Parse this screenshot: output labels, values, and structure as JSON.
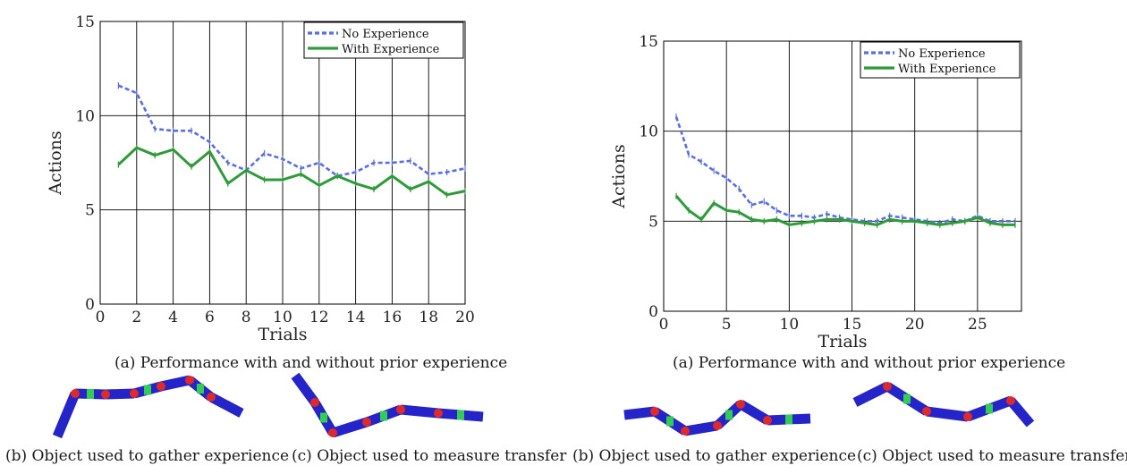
{
  "colors": {
    "no_experience": "#5a6ee0",
    "with_experience": "#2e9a3a",
    "segment": "#2424c8",
    "joint": "#e02a2a",
    "link": "#33cc55",
    "grid": "#000000"
  },
  "chart_data": [
    {
      "type": "line",
      "xlabel": "Trials",
      "ylabel": "Actions",
      "xlim": [
        0,
        20
      ],
      "ylim": [
        0,
        15
      ],
      "xticks": [
        "0",
        "2",
        "4",
        "6",
        "8",
        "10",
        "12",
        "14",
        "16",
        "18",
        "20"
      ],
      "yticks": [
        "0",
        "5",
        "10",
        "15"
      ],
      "grid": true,
      "legend": "top-right",
      "x": [
        1,
        2,
        3,
        4,
        5,
        6,
        7,
        8,
        9,
        10,
        11,
        12,
        13,
        14,
        15,
        16,
        17,
        18,
        19,
        20
      ],
      "series": [
        {
          "name": "No Experience",
          "values": [
            11.6,
            11.2,
            9.3,
            9.2,
            9.2,
            8.6,
            7.5,
            7.1,
            8.0,
            7.7,
            7.2,
            7.5,
            6.8,
            7.0,
            7.5,
            7.5,
            7.6,
            6.9,
            7.0,
            7.2
          ]
        },
        {
          "name": "With Experience",
          "values": [
            7.4,
            8.3,
            7.9,
            8.2,
            7.3,
            8.1,
            6.4,
            7.1,
            6.6,
            6.6,
            6.9,
            6.3,
            6.8,
            6.4,
            6.1,
            6.8,
            6.1,
            6.5,
            5.8,
            6.0
          ]
        }
      ],
      "caption": "(a) Performance with and without prior experience"
    },
    {
      "type": "line",
      "xlabel": "Trials",
      "ylabel": "Actions",
      "xlim": [
        0,
        28.5
      ],
      "ylim": [
        0,
        15
      ],
      "xticks": [
        "0",
        "5",
        "10",
        "15",
        "20",
        "25"
      ],
      "yticks": [
        "0",
        "5",
        "10",
        "15"
      ],
      "grid": true,
      "legend": "top-right",
      "x": [
        1,
        2,
        3,
        4,
        5,
        6,
        7,
        8,
        9,
        10,
        11,
        12,
        13,
        14,
        15,
        16,
        17,
        18,
        19,
        20,
        21,
        22,
        23,
        24,
        25,
        26,
        27,
        28
      ],
      "series": [
        {
          "name": "No Experience",
          "values": [
            10.8,
            8.7,
            8.3,
            7.8,
            7.4,
            6.8,
            5.9,
            6.1,
            5.6,
            5.3,
            5.3,
            5.2,
            5.4,
            5.2,
            5.1,
            5.0,
            5.0,
            5.3,
            5.2,
            5.1,
            5.0,
            4.9,
            5.1,
            5.0,
            5.3,
            5.0,
            5.0,
            5.0
          ]
        },
        {
          "name": "With Experience",
          "values": [
            6.4,
            5.6,
            5.1,
            6.0,
            5.6,
            5.5,
            5.1,
            5.0,
            5.1,
            4.8,
            4.9,
            5.0,
            5.1,
            5.1,
            5.0,
            4.9,
            4.8,
            5.1,
            5.0,
            5.0,
            4.9,
            4.8,
            4.9,
            5.0,
            5.2,
            4.9,
            4.8,
            4.8
          ]
        }
      ],
      "caption": "(a) Performance with and without prior experience"
    }
  ],
  "captions": {
    "left_b": "(b) Object used to gather experience",
    "left_c": "(c) Object used to measure transfer",
    "right_b": "(b) Object used to gather experience",
    "right_c": "(c) Object used to measure transfer"
  }
}
